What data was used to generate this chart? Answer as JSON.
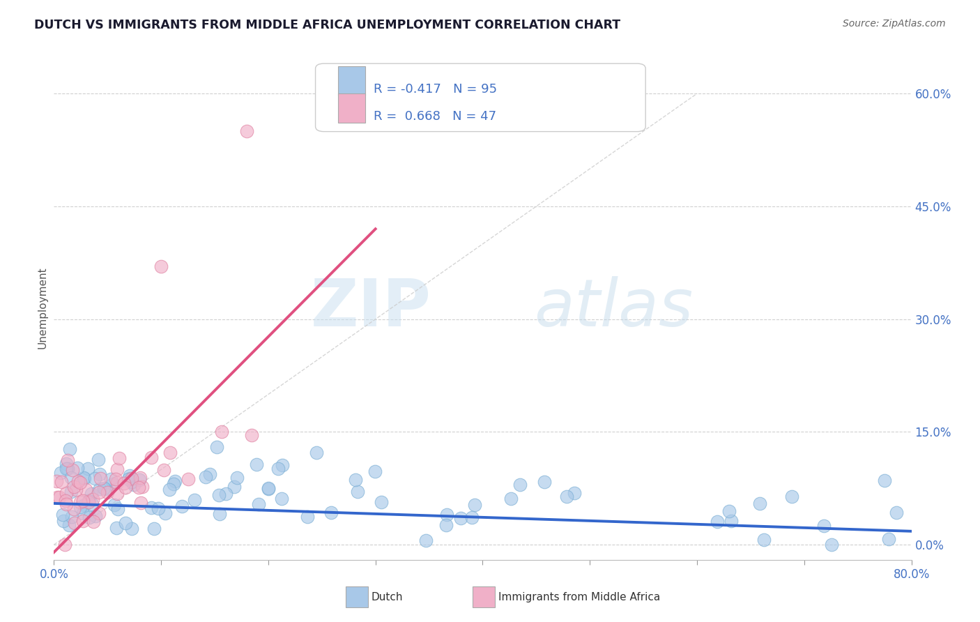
{
  "title": "DUTCH VS IMMIGRANTS FROM MIDDLE AFRICA UNEMPLOYMENT CORRELATION CHART",
  "source": "Source: ZipAtlas.com",
  "ylabel": "Unemployment",
  "yaxis_ticks": [
    "0.0%",
    "15.0%",
    "30.0%",
    "45.0%",
    "60.0%"
  ],
  "yaxis_values": [
    0.0,
    0.15,
    0.3,
    0.45,
    0.6
  ],
  "xmin": 0.0,
  "xmax": 0.8,
  "ymin": -0.02,
  "ymax": 0.65,
  "dutch_color": "#a8c8e8",
  "dutch_edge_color": "#7aaed4",
  "dutch_line_color": "#3366cc",
  "immigrant_color": "#f0b0c8",
  "immigrant_edge_color": "#e080a0",
  "immigrant_line_color": "#e05080",
  "dutch_R": -0.417,
  "dutch_N": 95,
  "immigrant_R": 0.668,
  "immigrant_N": 47,
  "watermark_zip": "ZIP",
  "watermark_atlas": "atlas",
  "title_color": "#1a1a2e",
  "source_color": "#666666",
  "axis_label_color": "#4472c4",
  "background_color": "#ffffff",
  "grid_color": "#d0d0d0",
  "legend_text_color": "#4472c4",
  "diagonal_color": "#cccccc",
  "dutch_trend_start_x": 0.0,
  "dutch_trend_start_y": 0.055,
  "dutch_trend_end_x": 0.8,
  "dutch_trend_end_y": 0.018,
  "imm_trend_start_x": 0.0,
  "imm_trend_start_y": -0.01,
  "imm_trend_end_x": 0.3,
  "imm_trend_end_y": 0.42
}
